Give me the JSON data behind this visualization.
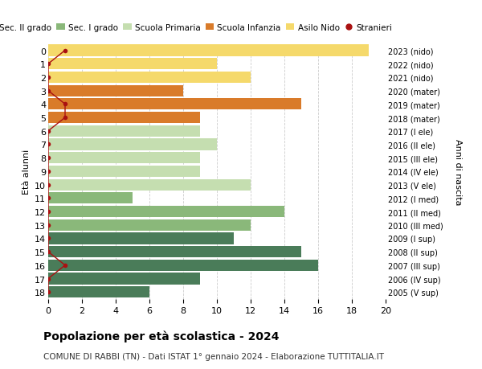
{
  "ages": [
    18,
    17,
    16,
    15,
    14,
    13,
    12,
    11,
    10,
    9,
    8,
    7,
    6,
    5,
    4,
    3,
    2,
    1,
    0
  ],
  "right_labels": [
    "2005 (V sup)",
    "2006 (IV sup)",
    "2007 (III sup)",
    "2008 (II sup)",
    "2009 (I sup)",
    "2010 (III med)",
    "2011 (II med)",
    "2012 (I med)",
    "2013 (V ele)",
    "2014 (IV ele)",
    "2015 (III ele)",
    "2016 (II ele)",
    "2017 (I ele)",
    "2018 (mater)",
    "2019 (mater)",
    "2020 (mater)",
    "2021 (nido)",
    "2022 (nido)",
    "2023 (nido)"
  ],
  "bar_values": [
    6,
    9,
    16,
    15,
    11,
    12,
    14,
    5,
    12,
    9,
    9,
    10,
    9,
    9,
    15,
    8,
    12,
    10,
    19
  ],
  "bar_colors": [
    "#4a7c59",
    "#4a7c59",
    "#4a7c59",
    "#4a7c59",
    "#4a7c59",
    "#8ab87a",
    "#8ab87a",
    "#8ab87a",
    "#c5deb0",
    "#c5deb0",
    "#c5deb0",
    "#c5deb0",
    "#c5deb0",
    "#d97b2a",
    "#d97b2a",
    "#d97b2a",
    "#f5d96b",
    "#f5d96b",
    "#f5d96b"
  ],
  "stranieri_values": [
    0,
    0,
    1,
    0,
    0,
    0,
    0,
    0,
    0,
    0,
    0,
    0,
    0,
    1,
    1,
    0,
    0,
    0,
    1
  ],
  "legend_labels": [
    "Sec. II grado",
    "Sec. I grado",
    "Scuola Primaria",
    "Scuola Infanzia",
    "Asilo Nido",
    "Stranieri"
  ],
  "legend_colors": [
    "#4a7c59",
    "#8ab87a",
    "#c5deb0",
    "#d97b2a",
    "#f5d96b",
    "#aa1111"
  ],
  "title": "Popolazione per età scolastica - 2024",
  "subtitle": "COMUNE DI RABBI (TN) - Dati ISTAT 1° gennaio 2024 - Elaborazione TUTTITALIA.IT",
  "ylabel": "Età alunni",
  "right_ylabel": "Anni di nascita",
  "xlim": [
    0,
    20
  ],
  "xticks": [
    0,
    2,
    4,
    6,
    8,
    10,
    12,
    14,
    16,
    18,
    20
  ],
  "background_color": "#ffffff",
  "grid_color": "#cccccc"
}
